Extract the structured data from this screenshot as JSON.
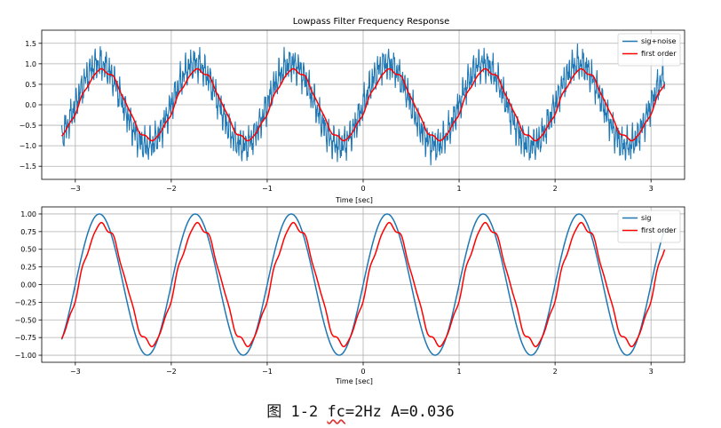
{
  "figure_title": "Lowpass Filter Frequency Response",
  "caption": {
    "prefix": "图 1-2 ",
    "fc_word": "fc",
    "rest": "=2Hz  A=0.036"
  },
  "chart_data": [
    {
      "type": "line",
      "title": "Lowpass Filter Frequency Response",
      "xlabel": "Time [sec]",
      "ylabel": "",
      "xlim": [
        -3.35,
        3.35
      ],
      "ylim": [
        -1.82,
        1.82
      ],
      "grid": true,
      "legend_position": "top-right",
      "xticks": [
        -3,
        -2,
        -1,
        0,
        1,
        2,
        3
      ],
      "xtick_labels": [
        "−3",
        "−2",
        "−1",
        "0",
        "1",
        "2",
        "3"
      ],
      "yticks": [
        -1.5,
        -1.0,
        -0.5,
        0.0,
        0.5,
        1.0,
        1.5
      ],
      "ytick_labels": [
        "−1.5",
        "−1.0",
        "−0.5",
        "0.0",
        "0.5",
        "1.0",
        "1.5"
      ],
      "x_range": [
        -3.14159,
        3.14159
      ],
      "signal": {
        "frequency_hz": 1,
        "amplitude": 1,
        "phase": 0
      },
      "series": [
        {
          "name": "sig+noise",
          "color": "#1f77b4",
          "kind": "sine_plus_noise",
          "noise_amplitude": 0.4,
          "noise_frequency_hz": 35,
          "samples": 1800
        },
        {
          "name": "first order",
          "color": "#ff0000",
          "kind": "filtered",
          "gain": 0.85,
          "delay_sec": 0.035,
          "samples": 900
        }
      ]
    },
    {
      "type": "line",
      "title": "",
      "xlabel": "Time [sec]",
      "ylabel": "",
      "xlim": [
        -3.35,
        3.35
      ],
      "ylim": [
        -1.1,
        1.1
      ],
      "grid": true,
      "legend_position": "top-right",
      "xticks": [
        -3,
        -2,
        -1,
        0,
        1,
        2,
        3
      ],
      "xtick_labels": [
        "−3",
        "−2",
        "−1",
        "0",
        "1",
        "2",
        "3"
      ],
      "yticks": [
        -1.0,
        -0.75,
        -0.5,
        -0.25,
        0.0,
        0.25,
        0.5,
        0.75,
        1.0
      ],
      "ytick_labels": [
        "−1.00",
        "−0.75",
        "−0.50",
        "−0.25",
        "0.00",
        "0.25",
        "0.50",
        "0.75",
        "1.00"
      ],
      "x_range": [
        -3.14159,
        3.14159
      ],
      "signal": {
        "frequency_hz": 1,
        "amplitude": 1,
        "phase": 0
      },
      "series": [
        {
          "name": "sig",
          "color": "#1f77b4",
          "kind": "sine",
          "samples": 600
        },
        {
          "name": "first order",
          "color": "#ff0000",
          "kind": "filtered",
          "gain": 0.85,
          "delay_sec": 0.035,
          "samples": 900
        }
      ]
    }
  ]
}
